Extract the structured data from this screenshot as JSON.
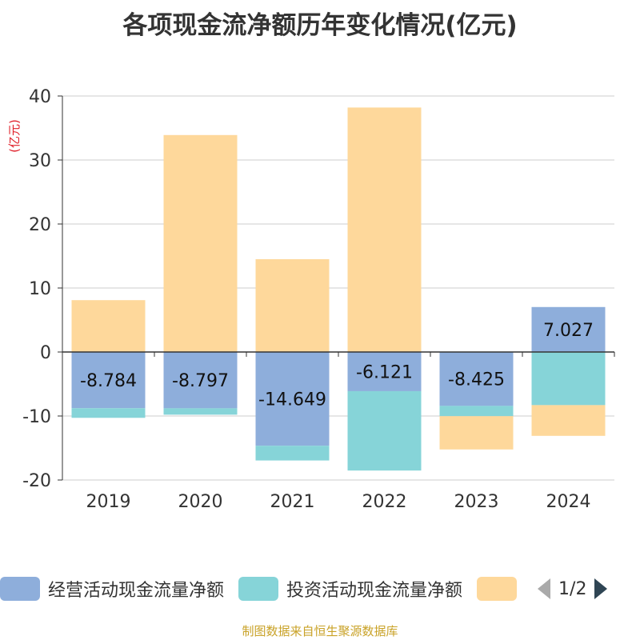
{
  "title": "各项现金流净额历年变化情况(亿元)",
  "unit_label": "(亿元)",
  "source": "制图数据来自恒生聚源数据库",
  "legend": {
    "items": [
      {
        "label": "经营活动现金流量净额",
        "color": "#8eaedb"
      },
      {
        "label": "投资活动现金流量净额",
        "color": "#86d4d8"
      },
      {
        "label": "",
        "color": "#fed89b"
      }
    ],
    "page": "1/2"
  },
  "chart_data": {
    "type": "bar",
    "stacked": true,
    "categories": [
      "2019",
      "2020",
      "2021",
      "2022",
      "2023",
      "2024"
    ],
    "series": [
      {
        "name": "经营活动现金流量净额",
        "color": "#8eaedb",
        "values": [
          -8.784,
          -8.797,
          -14.649,
          -6.121,
          -8.425,
          7.027
        ],
        "labels": [
          "-8.784",
          "-8.797",
          "-14.649",
          "-6.121",
          "-8.425",
          "7.027"
        ]
      },
      {
        "name": "投资活动现金流量净额",
        "color": "#86d4d8",
        "values": [
          -1.5,
          -1.0,
          -2.3,
          -12.4,
          -1.6,
          -8.3
        ]
      },
      {
        "color": "#fed89b",
        "values": [
          8.1,
          33.9,
          14.5,
          38.2,
          -5.2,
          -4.8
        ]
      }
    ],
    "ylim": [
      -20,
      40
    ],
    "yticks": [
      40,
      30,
      20,
      10,
      0,
      -10,
      -20
    ],
    "grid": true,
    "legend_position": "bottom"
  }
}
